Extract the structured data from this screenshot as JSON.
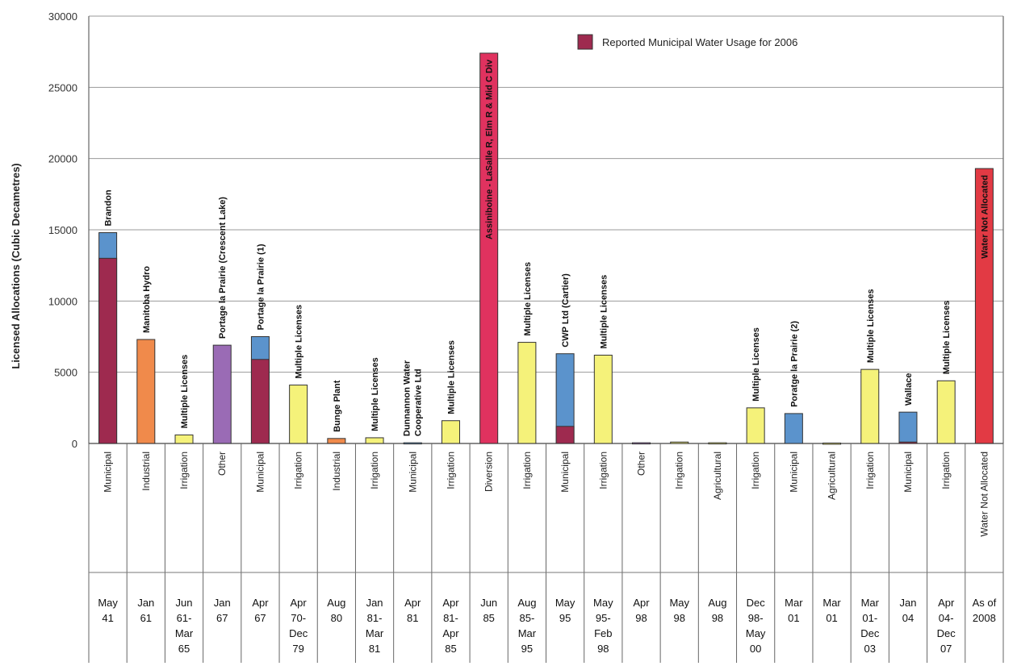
{
  "chart_data": {
    "type": "bar",
    "stacked": true,
    "ylabel": "Licensed Allocations (Cubic Decametres)",
    "ylim": [
      0,
      30000
    ],
    "yticks": [
      0,
      5000,
      10000,
      15000,
      20000,
      25000,
      30000
    ],
    "grid": true,
    "legend": {
      "position": "top-right",
      "entries": [
        {
          "label": "Reported Municipal Water Usage for 2006",
          "color": "#9e2a4f"
        }
      ]
    },
    "colors": {
      "reported_usage": "#9e2a4f",
      "municipal": "#5b93cc",
      "industrial": "#f08a4b",
      "irrigation": "#f5f27a",
      "other": "#9a6bb5",
      "diversion": "#e0325f",
      "not_allocated": "#e23a44"
    },
    "bars": [
      {
        "label": "Brandon",
        "type": "Municipal",
        "date": [
          "May",
          "41"
        ],
        "total": 14800,
        "reported": 13000,
        "color": "municipal"
      },
      {
        "label": "Manitoba Hydro",
        "type": "Industrial",
        "date": [
          "Jan",
          "61"
        ],
        "total": 7300,
        "reported": 0,
        "color": "industrial"
      },
      {
        "label": "Multiple Licenses",
        "type": "Irrigation",
        "date": [
          "Jun",
          "61-",
          "Mar",
          "65"
        ],
        "total": 600,
        "reported": 0,
        "color": "irrigation"
      },
      {
        "label": "Portage la Prairie (Crescent Lake)",
        "type": "Other",
        "date": [
          "Jan",
          "67"
        ],
        "total": 6900,
        "reported": 0,
        "color": "other"
      },
      {
        "label": "Portage la Prairie (1)",
        "type": "Municipal",
        "date": [
          "Apr",
          "67"
        ],
        "total": 7500,
        "reported": 5900,
        "color": "municipal"
      },
      {
        "label": "Multiple Licenses",
        "type": "Irrigation",
        "date": [
          "Apr",
          "70-",
          "Dec",
          "79"
        ],
        "total": 4100,
        "reported": 0,
        "color": "irrigation"
      },
      {
        "label": "Bunge Plant",
        "type": "Industrial",
        "date": [
          "Aug",
          "80"
        ],
        "total": 350,
        "reported": 0,
        "color": "industrial"
      },
      {
        "label": "Multiple Licenses",
        "type": "Irrigation",
        "date": [
          "Jan",
          "81-",
          "Mar",
          "81"
        ],
        "total": 400,
        "reported": 0,
        "color": "irrigation"
      },
      {
        "label": "Dunnannon Water",
        "label2": "Cooperative Ltd",
        "type": "Municipal",
        "date": [
          "Apr",
          "81"
        ],
        "total": 50,
        "reported": 0,
        "color": "municipal"
      },
      {
        "label": "Multiple Licenses",
        "type": "Irrigation",
        "date": [
          "Apr",
          "81-",
          "Apr",
          "85"
        ],
        "total": 1600,
        "reported": 0,
        "color": "irrigation"
      },
      {
        "label": "Assiniboine - LaSalle R, Elm R & Mid C Div",
        "type": "Diversion",
        "date": [
          "Jun",
          "85"
        ],
        "total": 27400,
        "reported": 0,
        "color": "diversion",
        "inside": true
      },
      {
        "label": "Multiple Licenses",
        "type": "Irrigation",
        "date": [
          "Aug",
          "85-",
          "Mar",
          "95"
        ],
        "total": 7100,
        "reported": 0,
        "color": "irrigation"
      },
      {
        "label": "CWP Ltd (Cartier)",
        "type": "Municipal",
        "date": [
          "May",
          "95"
        ],
        "total": 6300,
        "reported": 1200,
        "color": "municipal"
      },
      {
        "label": "Multiple Licenses",
        "type": "Irrigation",
        "date": [
          "May",
          "95-",
          "Feb",
          "98"
        ],
        "total": 6200,
        "reported": 0,
        "color": "irrigation"
      },
      {
        "label": "",
        "type": "Other",
        "date": [
          "Apr",
          "98"
        ],
        "total": 50,
        "reported": 0,
        "color": "other"
      },
      {
        "label": "",
        "type": "Irrigation",
        "date": [
          "May",
          "98"
        ],
        "total": 100,
        "reported": 0,
        "color": "irrigation"
      },
      {
        "label": "",
        "type": "Agricultural",
        "date": [
          "Aug",
          "98"
        ],
        "total": 50,
        "reported": 0,
        "color": "irrigation"
      },
      {
        "label": "Multiple Licenses",
        "type": "Irrigation",
        "date": [
          "Dec",
          "98-",
          "May",
          "00"
        ],
        "total": 2500,
        "reported": 0,
        "color": "irrigation"
      },
      {
        "label": "Poratge la Prairie (2)",
        "type": "Municipal",
        "date": [
          "Mar",
          "01"
        ],
        "total": 2100,
        "reported": 0,
        "color": "municipal"
      },
      {
        "label": "",
        "type": "Agricultural",
        "date": [
          "Mar",
          "01"
        ],
        "total": 30,
        "reported": 0,
        "color": "irrigation"
      },
      {
        "label": "Multiple Licenses",
        "type": "Irrigation",
        "date": [
          "Mar",
          "01-",
          "Dec",
          "03"
        ],
        "total": 5200,
        "reported": 0,
        "color": "irrigation"
      },
      {
        "label": "Wallace",
        "type": "Municipal",
        "date": [
          "Jan",
          "04"
        ],
        "total": 2200,
        "reported": 100,
        "color": "municipal"
      },
      {
        "label": "Multiple Licenses",
        "type": "Irrigation",
        "date": [
          "Apr",
          "04-",
          "Dec",
          "07"
        ],
        "total": 4400,
        "reported": 0,
        "color": "irrigation"
      },
      {
        "label": "Water Not Allocated",
        "type": "Water Not Allocated",
        "date": [
          "As of",
          "2008"
        ],
        "total": 19300,
        "reported": 0,
        "color": "not_allocated",
        "inside": true
      }
    ]
  }
}
